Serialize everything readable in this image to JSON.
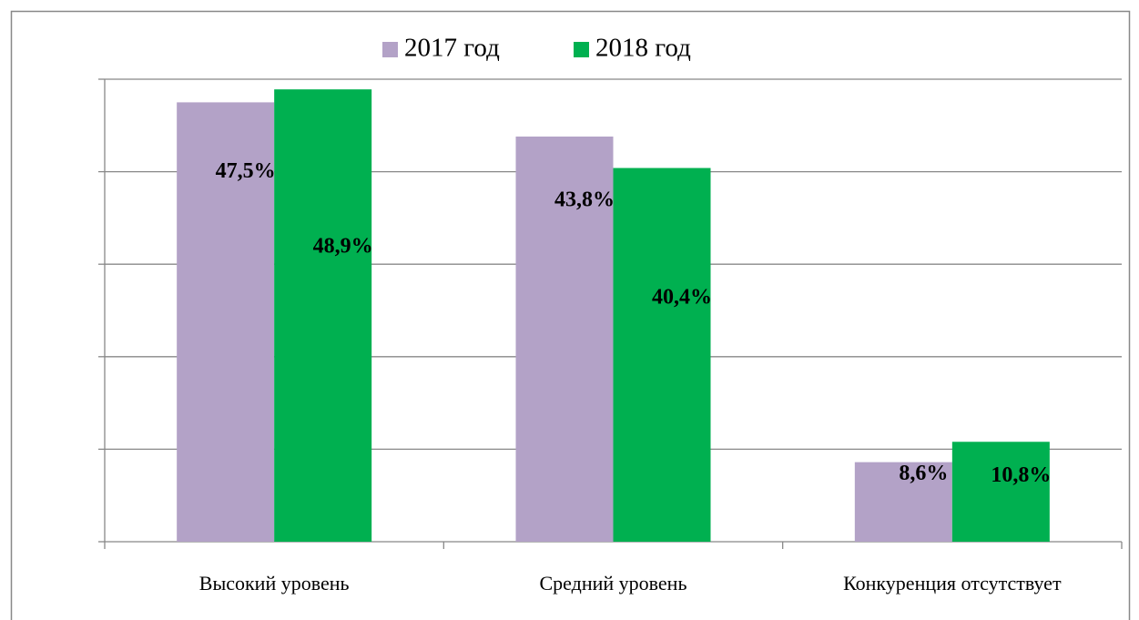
{
  "chart_data": {
    "type": "bar",
    "categories": [
      "Высокий уровень",
      "Средний уровень",
      "Конкуренция отсутствует"
    ],
    "series": [
      {
        "name": "2017 год",
        "color": "#b3a2c7",
        "values": [
          47.5,
          43.8,
          8.6
        ],
        "value_labels": [
          "47,5%",
          "43,8%",
          "8,6%"
        ]
      },
      {
        "name": "2018 год",
        "color": "#00b050",
        "values": [
          48.9,
          40.4,
          10.8
        ],
        "value_labels": [
          "48,9%",
          "40,4%",
          "10,8%"
        ]
      }
    ],
    "ylim": [
      0,
      50
    ],
    "yticks": [
      0,
      10,
      20,
      30,
      40,
      50
    ],
    "grid": true,
    "legend": "top"
  }
}
